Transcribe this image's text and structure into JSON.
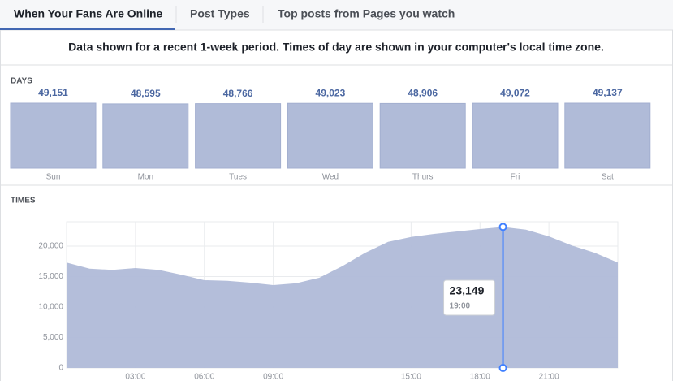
{
  "tabs": [
    "When Your Fans Are Online",
    "Post Types",
    "Top posts from Pages you watch"
  ],
  "notice": "Data shown for a recent 1-week period. Times of day are shown in your computer's local time zone.",
  "chart_data": [
    {
      "type": "bar",
      "title": "DAYS",
      "categories": [
        "Sun",
        "Mon",
        "Tues",
        "Wed",
        "Thurs",
        "Fri",
        "Sat"
      ],
      "values": [
        49151,
        48595,
        48766,
        49023,
        48906,
        49072,
        49137
      ],
      "value_labels": [
        "49,151",
        "48,595",
        "48,766",
        "49,023",
        "48,906",
        "49,072",
        "49,137"
      ],
      "color": "#b0bbd8"
    },
    {
      "type": "area",
      "title": "TIMES",
      "x": [
        0,
        1,
        2,
        3,
        4,
        5,
        6,
        7,
        8,
        9,
        10,
        11,
        12,
        13,
        14,
        15,
        16,
        17,
        18,
        19,
        20,
        21,
        22,
        23,
        24
      ],
      "values": [
        17300,
        16300,
        16100,
        16400,
        16100,
        15300,
        14400,
        14300,
        14000,
        13600,
        13900,
        14800,
        16700,
        18900,
        20700,
        21500,
        22000,
        22400,
        22800,
        23149,
        22700,
        21600,
        20100,
        18900,
        17300
      ],
      "color": "#b0bbd8",
      "xlim": [
        0,
        24
      ],
      "ylim": [
        0,
        24000
      ],
      "xticks": [
        {
          "value": 3,
          "label": "03:00"
        },
        {
          "value": 6,
          "label": "06:00"
        },
        {
          "value": 9,
          "label": "09:00"
        },
        {
          "value": 15,
          "label": "15:00"
        },
        {
          "value": 18,
          "label": "18:00"
        },
        {
          "value": 21,
          "label": "21:00"
        }
      ],
      "yticks": [
        0,
        {
          "value": 5000,
          "label": "5,000"
        },
        {
          "value": 10000,
          "label": "10,000"
        },
        {
          "value": 15000,
          "label": "15,000"
        },
        {
          "value": 20000,
          "label": "20,000"
        }
      ],
      "grid": true,
      "tooltip": {
        "x": 19,
        "label": "23,149",
        "x_label": "19:00"
      }
    }
  ]
}
